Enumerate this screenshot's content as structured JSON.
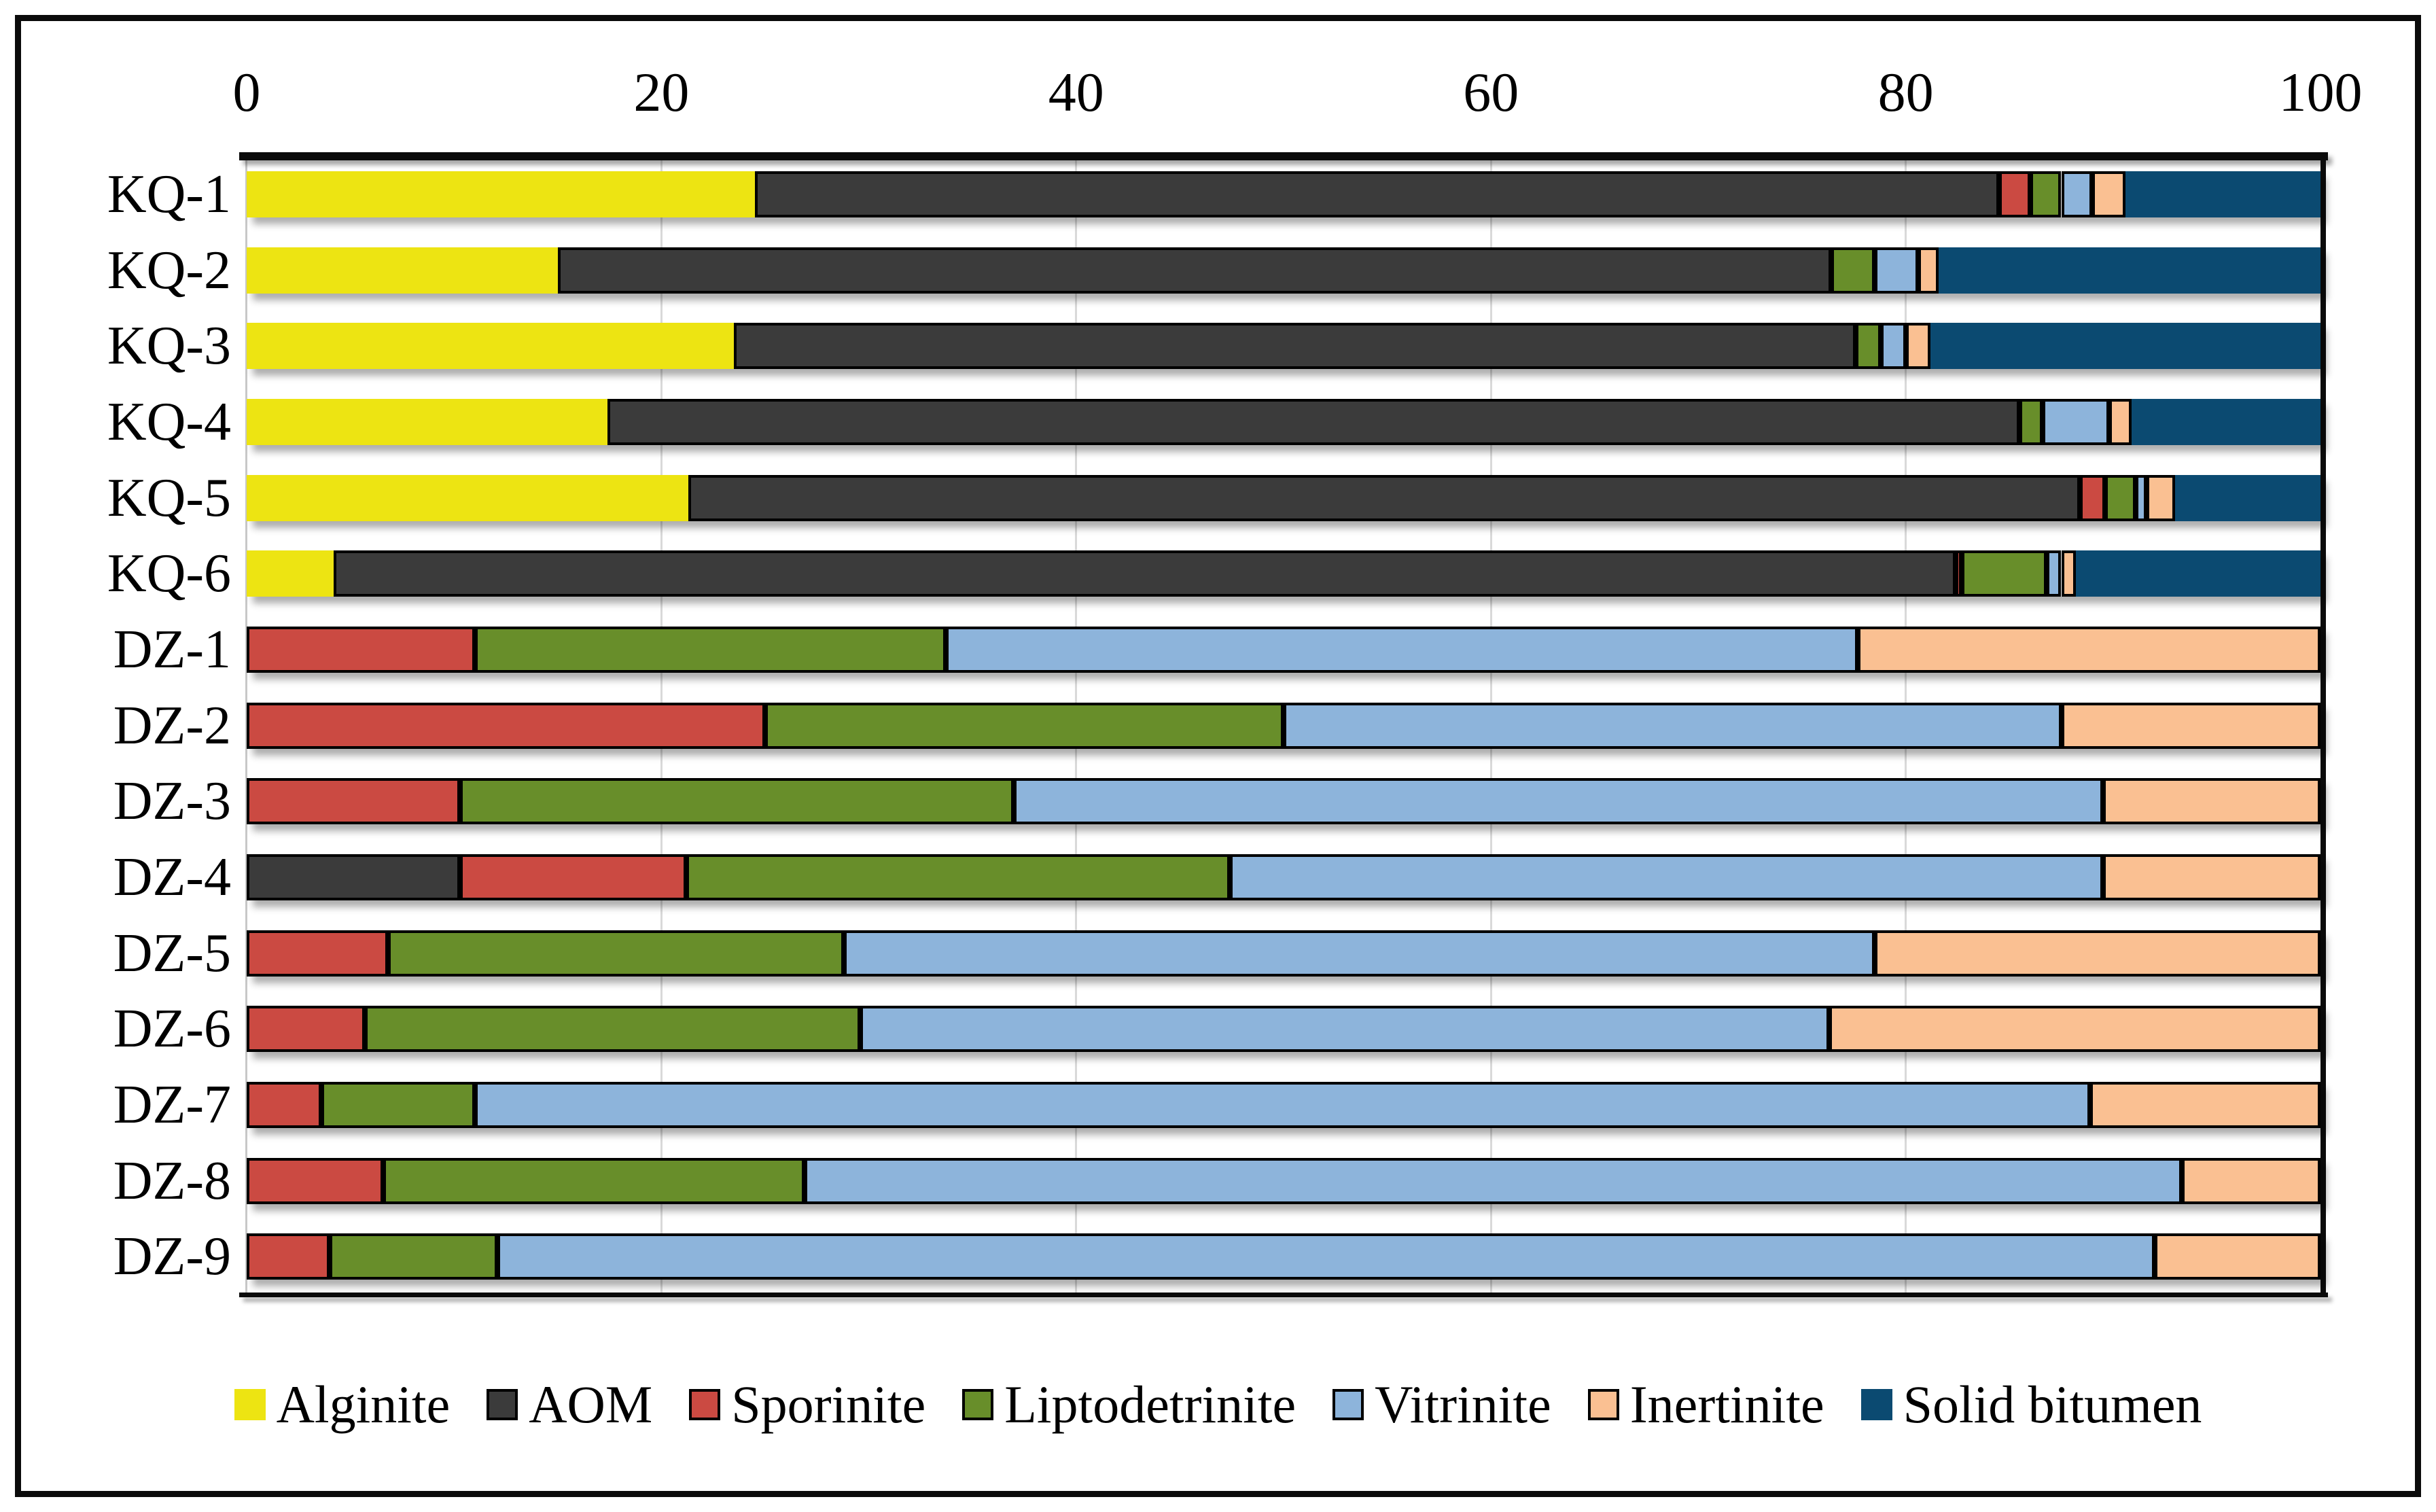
{
  "chart_data": {
    "type": "bar",
    "stacked": true,
    "orientation": "horizontal",
    "title": "",
    "xlabel": "",
    "ylabel": "",
    "xlim": [
      0,
      100
    ],
    "x_ticks": [
      0,
      20,
      40,
      60,
      80,
      100
    ],
    "grid": "vertical-light",
    "legend_position": "bottom",
    "categories": [
      "KQ-1",
      "KQ-2",
      "KQ-3",
      "KQ-4",
      "KQ-5",
      "KQ-6",
      "DZ-1",
      "DZ-2",
      "DZ-3",
      "DZ-4",
      "DZ-5",
      "DZ-6",
      "DZ-7",
      "DZ-8",
      "DZ-9"
    ],
    "series": [
      {
        "name": "Alginite",
        "color": "#ede412",
        "outlined": false,
        "values": [
          24.5,
          15.0,
          23.5,
          17.4,
          21.3,
          4.2,
          0,
          0,
          0,
          0,
          0,
          0,
          0,
          0,
          0
        ]
      },
      {
        "name": "AOM",
        "color": "#3b3b3b",
        "outlined": true,
        "values": [
          60.0,
          61.4,
          54.1,
          68.1,
          67.1,
          78.2,
          0,
          0,
          0,
          10.3,
          0,
          0,
          0,
          0,
          0
        ]
      },
      {
        "name": "Sporinite",
        "color": "#cb4a42",
        "outlined": true,
        "values": [
          1.5,
          0,
          0,
          0,
          1.2,
          0.3,
          11.0,
          25.0,
          10.3,
          10.9,
          6.8,
          5.7,
          3.6,
          6.6,
          4.0
        ]
      },
      {
        "name": "Liptodetrinite",
        "color": "#688e2a",
        "outlined": true,
        "values": [
          1.5,
          2.1,
          1.2,
          1.1,
          1.5,
          4.1,
          22.7,
          25.0,
          26.7,
          26.2,
          22.0,
          23.9,
          7.4,
          20.3,
          8.1
        ]
      },
      {
        "name": "Vitrinite",
        "color": "#8db4db",
        "outlined": true,
        "values": [
          1.5,
          2.1,
          1.2,
          3.2,
          0.5,
          0.7,
          44.0,
          37.5,
          52.5,
          42.1,
          49.7,
          46.7,
          77.9,
          66.4,
          79.9
        ]
      },
      {
        "name": "Inertinite",
        "color": "#fac092",
        "outlined": true,
        "values": [
          1.6,
          1.0,
          1.2,
          1.1,
          1.4,
          0.7,
          22.3,
          12.5,
          10.5,
          10.5,
          21.5,
          23.7,
          11.1,
          6.7,
          8.0
        ]
      },
      {
        "name": "Solid bitumen",
        "color": "#0b4a71",
        "outlined": false,
        "values": [
          9.4,
          18.4,
          18.8,
          9.1,
          7.0,
          11.8,
          0,
          0,
          0,
          0,
          0,
          0,
          0,
          0,
          0
        ]
      }
    ]
  }
}
